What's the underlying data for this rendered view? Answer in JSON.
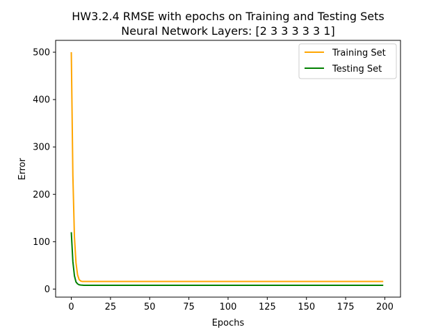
{
  "chart_data": {
    "type": "line",
    "title": "HW3.2.4 RMSE with epochs on Training and Testing Sets",
    "subtitle": "Neural Network Layers: [2 3 3 3 3 3 1]",
    "xlabel": "Epochs",
    "ylabel": "Error",
    "xlim": [
      -10,
      210
    ],
    "ylim": [
      -17,
      525
    ],
    "xticks": [
      0,
      25,
      50,
      75,
      100,
      125,
      150,
      175,
      200
    ],
    "yticks": [
      0,
      100,
      200,
      300,
      400,
      500
    ],
    "grid": false,
    "legend_position": "top-right",
    "series": [
      {
        "name": "Training Set",
        "color": "#FFA500",
        "x": [
          0,
          1,
          2,
          3,
          4,
          5,
          6,
          7,
          8,
          10,
          15,
          25,
          50,
          100,
          150,
          199
        ],
        "y": [
          500,
          240,
          110,
          55,
          30,
          20,
          17,
          16,
          16,
          16,
          16,
          16,
          16,
          16,
          16,
          16
        ]
      },
      {
        "name": "Testing Set",
        "color": "#008000",
        "x": [
          0,
          1,
          2,
          3,
          4,
          5,
          6,
          8,
          10,
          25,
          50,
          100,
          150,
          199
        ],
        "y": [
          120,
          58,
          28,
          15,
          11,
          9,
          8.5,
          8,
          8,
          8,
          8,
          8,
          8,
          8
        ]
      }
    ]
  }
}
